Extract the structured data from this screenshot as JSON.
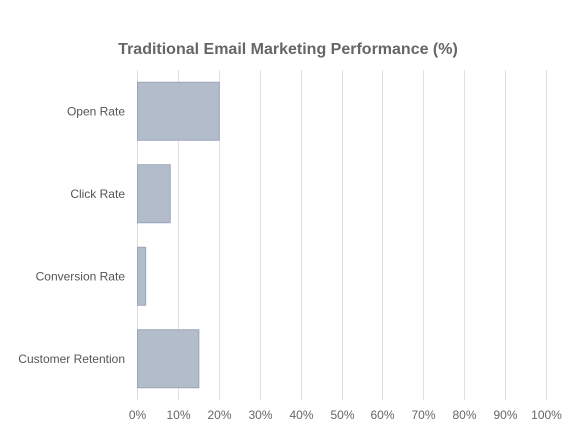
{
  "chart_data": {
    "type": "bar",
    "orientation": "horizontal",
    "title": "Traditional Email Marketing Performance (%)",
    "xlabel": "",
    "ylabel": "",
    "categories": [
      "Open Rate",
      "Click Rate",
      "Conversion Rate",
      "Customer Retention"
    ],
    "values": [
      20,
      8,
      2,
      15
    ],
    "xlim": [
      0,
      100
    ],
    "ticks": [
      0,
      10,
      20,
      30,
      40,
      50,
      60,
      70,
      80,
      90,
      100
    ],
    "tick_suffix": "%",
    "grid": true,
    "legend": "none",
    "colors": {
      "bar_fill": "#b3bccb",
      "bar_stroke": "#9aa5b8",
      "grid": "#e0e0e0",
      "title": "#666666",
      "label": "#555555"
    }
  }
}
